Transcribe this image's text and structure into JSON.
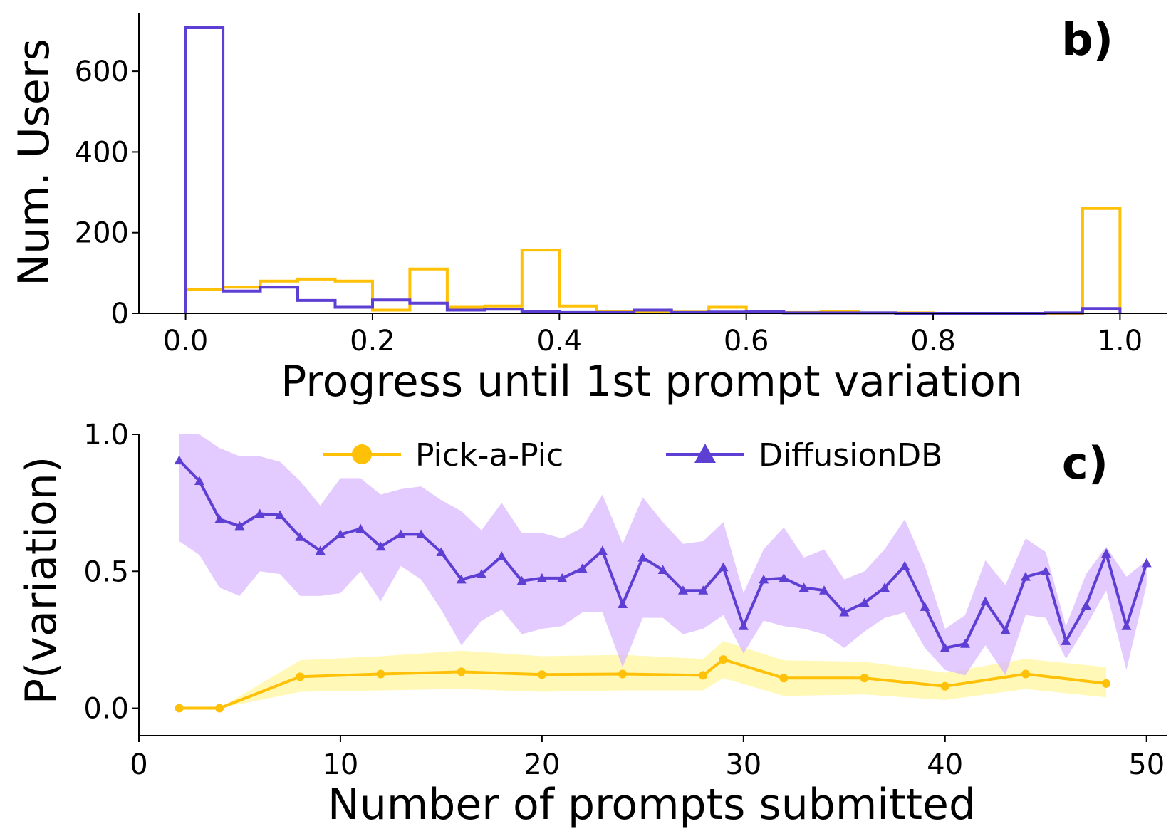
{
  "colors": {
    "pick_a_pic": "#FFC107",
    "pick_a_pic_band": "#FFF59D",
    "diffusiondb": "#5E3FD3",
    "diffusiondb_band": "#D9B8FF",
    "axis": "#000000"
  },
  "chart_data": [
    {
      "type": "histogram",
      "panel_label": "b)",
      "xlabel": "Progress until 1st prompt variation",
      "ylabel": "Num. Users",
      "xlim": [
        -0.05,
        1.05
      ],
      "ylim": [
        0,
        745
      ],
      "xticks": [
        0.0,
        0.2,
        0.4,
        0.6,
        0.8,
        1.0
      ],
      "xtick_labels": [
        "0.0",
        "0.2",
        "0.4",
        "0.6",
        "0.8",
        "1.0"
      ],
      "yticks": [
        0,
        200,
        400,
        600
      ],
      "ytick_labels": [
        "0",
        "200",
        "400",
        "600"
      ],
      "bin_edges": [
        0.0,
        0.04,
        0.08,
        0.12,
        0.16,
        0.2,
        0.24,
        0.28,
        0.32,
        0.36,
        0.4,
        0.44,
        0.48,
        0.52,
        0.56,
        0.6,
        0.64,
        0.68,
        0.72,
        0.76,
        0.8,
        0.84,
        0.88,
        0.92,
        0.96,
        1.0
      ],
      "histtype": "step",
      "series": [
        {
          "color_key": "pick_a_pic",
          "values": [
            60,
            65,
            80,
            85,
            80,
            8,
            110,
            15,
            18,
            157,
            18,
            5,
            2,
            3,
            15,
            2,
            2,
            4,
            1,
            1,
            0,
            0,
            0,
            0,
            260
          ]
        },
        {
          "color_key": "diffusiondb",
          "values": [
            708,
            55,
            65,
            32,
            15,
            33,
            25,
            8,
            10,
            5,
            2,
            2,
            8,
            2,
            3,
            4,
            1,
            1,
            1,
            0,
            0,
            0,
            0,
            1,
            12
          ]
        }
      ],
      "spines": "left-bottom",
      "grid": false
    },
    {
      "type": "line",
      "panel_label": "c)",
      "xlabel": "Number of prompts submitted",
      "ylabel": "P(variation)",
      "xlim": [
        0,
        51
      ],
      "ylim": [
        -0.1,
        1.0
      ],
      "xticks": [
        0,
        10,
        20,
        30,
        40,
        50
      ],
      "xtick_labels": [
        "0",
        "10",
        "20",
        "30",
        "40",
        "50"
      ],
      "yticks": [
        0.0,
        0.5,
        1.0
      ],
      "ytick_labels": [
        "0.0",
        "0.5",
        "1.0"
      ],
      "legend": {
        "position": "top-center",
        "columns": 2
      },
      "series": [
        {
          "name": "Pick-a-Pic",
          "marker": "circle",
          "color_key": "pick_a_pic",
          "band_color_key": "pick_a_pic_band",
          "x": [
            2,
            4,
            8,
            12,
            16,
            20,
            24,
            28,
            29,
            32,
            36,
            40,
            44,
            48
          ],
          "y": [
            0.0,
            0.0,
            0.115,
            0.125,
            0.133,
            0.123,
            0.125,
            0.12,
            0.178,
            0.11,
            0.11,
            0.08,
            0.125,
            0.09
          ],
          "lower": [
            0.0,
            0.0,
            0.06,
            0.065,
            0.07,
            0.06,
            0.065,
            0.065,
            0.11,
            0.045,
            0.05,
            0.03,
            0.07,
            0.04
          ],
          "upper": [
            0.0,
            0.0,
            0.175,
            0.19,
            0.21,
            0.19,
            0.195,
            0.18,
            0.245,
            0.175,
            0.17,
            0.13,
            0.18,
            0.15
          ]
        },
        {
          "name": "DiffusionDB",
          "marker": "triangle",
          "color_key": "diffusiondb",
          "band_color_key": "diffusiondb_band",
          "x": [
            2,
            3,
            4,
            5,
            6,
            7,
            8,
            9,
            10,
            11,
            12,
            13,
            14,
            15,
            16,
            17,
            18,
            19,
            20,
            21,
            22,
            23,
            24,
            25,
            26,
            27,
            28,
            29,
            30,
            31,
            32,
            33,
            34,
            35,
            36,
            37,
            38,
            39,
            40,
            41,
            42,
            43,
            44,
            45,
            46,
            47,
            48,
            49,
            50
          ],
          "y": [
            0.905,
            0.83,
            0.69,
            0.665,
            0.71,
            0.705,
            0.625,
            0.575,
            0.635,
            0.655,
            0.59,
            0.635,
            0.635,
            0.57,
            0.47,
            0.49,
            0.555,
            0.465,
            0.475,
            0.475,
            0.51,
            0.575,
            0.38,
            0.55,
            0.505,
            0.43,
            0.43,
            0.515,
            0.3,
            0.47,
            0.475,
            0.44,
            0.43,
            0.35,
            0.385,
            0.44,
            0.52,
            0.37,
            0.22,
            0.235,
            0.39,
            0.285,
            0.48,
            0.5,
            0.245,
            0.375,
            0.565,
            0.3,
            0.53
          ],
          "lower": [
            0.61,
            0.56,
            0.44,
            0.41,
            0.5,
            0.49,
            0.41,
            0.41,
            0.42,
            0.5,
            0.39,
            0.52,
            0.47,
            0.36,
            0.23,
            0.32,
            0.36,
            0.27,
            0.29,
            0.3,
            0.35,
            0.35,
            0.15,
            0.33,
            0.33,
            0.27,
            0.29,
            0.34,
            0.2,
            0.32,
            0.3,
            0.29,
            0.27,
            0.22,
            0.28,
            0.33,
            0.35,
            0.22,
            0.14,
            0.12,
            0.23,
            0.12,
            0.34,
            0.33,
            0.18,
            0.3,
            0.43,
            0.14,
            0.45
          ],
          "upper": [
            1.0,
            1.0,
            0.95,
            0.92,
            0.92,
            0.9,
            0.83,
            0.74,
            0.84,
            0.84,
            0.78,
            0.8,
            0.81,
            0.76,
            0.72,
            0.65,
            0.75,
            0.64,
            0.64,
            0.62,
            0.66,
            0.78,
            0.6,
            0.77,
            0.68,
            0.6,
            0.61,
            0.68,
            0.42,
            0.58,
            0.66,
            0.55,
            0.58,
            0.47,
            0.5,
            0.58,
            0.69,
            0.52,
            0.29,
            0.34,
            0.54,
            0.45,
            0.62,
            0.57,
            0.3,
            0.49,
            0.59,
            0.48,
            0.54
          ]
        }
      ],
      "spines": "left-bottom",
      "grid": false
    }
  ]
}
